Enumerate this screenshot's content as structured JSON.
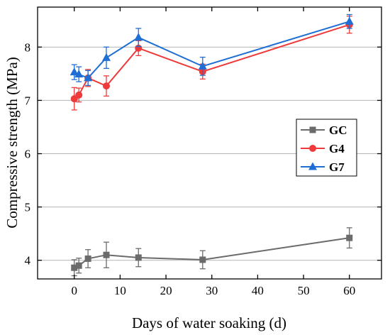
{
  "chart_data": {
    "type": "line",
    "xlabel": "Days of water soaking (d)",
    "ylabel": "Compressive strength (MPa)",
    "xlim": [
      -8,
      67
    ],
    "ylim": [
      3.65,
      8.75
    ],
    "xticks": [
      0,
      10,
      20,
      30,
      40,
      50,
      60
    ],
    "yticks": [
      4,
      5,
      6,
      7,
      8
    ],
    "x_tick_labels": [
      "0",
      "10",
      "20",
      "30",
      "40",
      "50",
      "60"
    ],
    "y_tick_labels": [
      "4",
      "5",
      "6",
      "7",
      "8"
    ],
    "grid": "horizontal",
    "legend_position": "center-right",
    "error_bars": true,
    "x": [
      0,
      1,
      3,
      7,
      14,
      28,
      60
    ],
    "series": [
      {
        "name": "GC",
        "marker": "square",
        "color": "#6b6b6b",
        "values": [
          3.86,
          3.9,
          4.03,
          4.1,
          4.05,
          4.01,
          4.42
        ],
        "errors": [
          0.15,
          0.14,
          0.17,
          0.24,
          0.17,
          0.17,
          0.19
        ]
      },
      {
        "name": "G4",
        "marker": "circle",
        "color": "#ee3a3a",
        "values": [
          7.03,
          7.1,
          7.42,
          7.27,
          7.98,
          7.54,
          8.42
        ],
        "errors": [
          0.21,
          0.13,
          0.16,
          0.19,
          0.14,
          0.14,
          0.16
        ]
      },
      {
        "name": "G7",
        "marker": "triangle",
        "color": "#1f6ed4",
        "values": [
          7.53,
          7.49,
          7.42,
          7.8,
          8.18,
          7.64,
          8.48
        ],
        "errors": [
          0.14,
          0.14,
          0.14,
          0.2,
          0.17,
          0.17,
          0.13
        ]
      }
    ]
  }
}
